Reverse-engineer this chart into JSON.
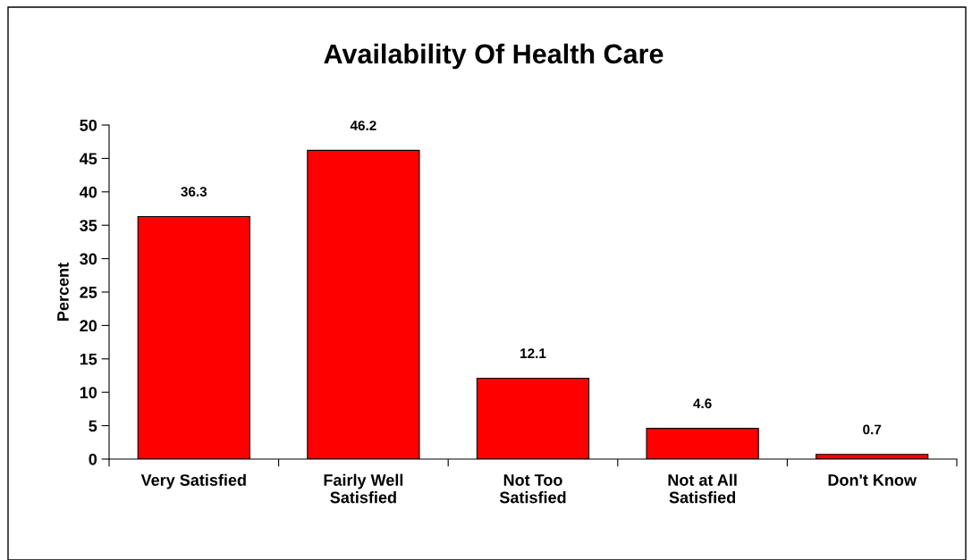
{
  "chart_data": {
    "type": "bar",
    "title": "Availability Of Health Care",
    "ylabel": "Percent",
    "categories": [
      "Very Satisfied",
      "Fairly Well\nSatisfied",
      "Not Too\nSatisfied",
      "Not at All\nSatisfied",
      "Don't Know"
    ],
    "values": [
      36.3,
      46.2,
      12.1,
      4.6,
      0.7
    ],
    "color": "#ff0000",
    "ylim": [
      0,
      50
    ],
    "yticks": [
      0,
      5,
      10,
      15,
      20,
      25,
      30,
      35,
      40,
      45,
      50
    ],
    "grid": false,
    "legend": false,
    "data_labels": true
  }
}
